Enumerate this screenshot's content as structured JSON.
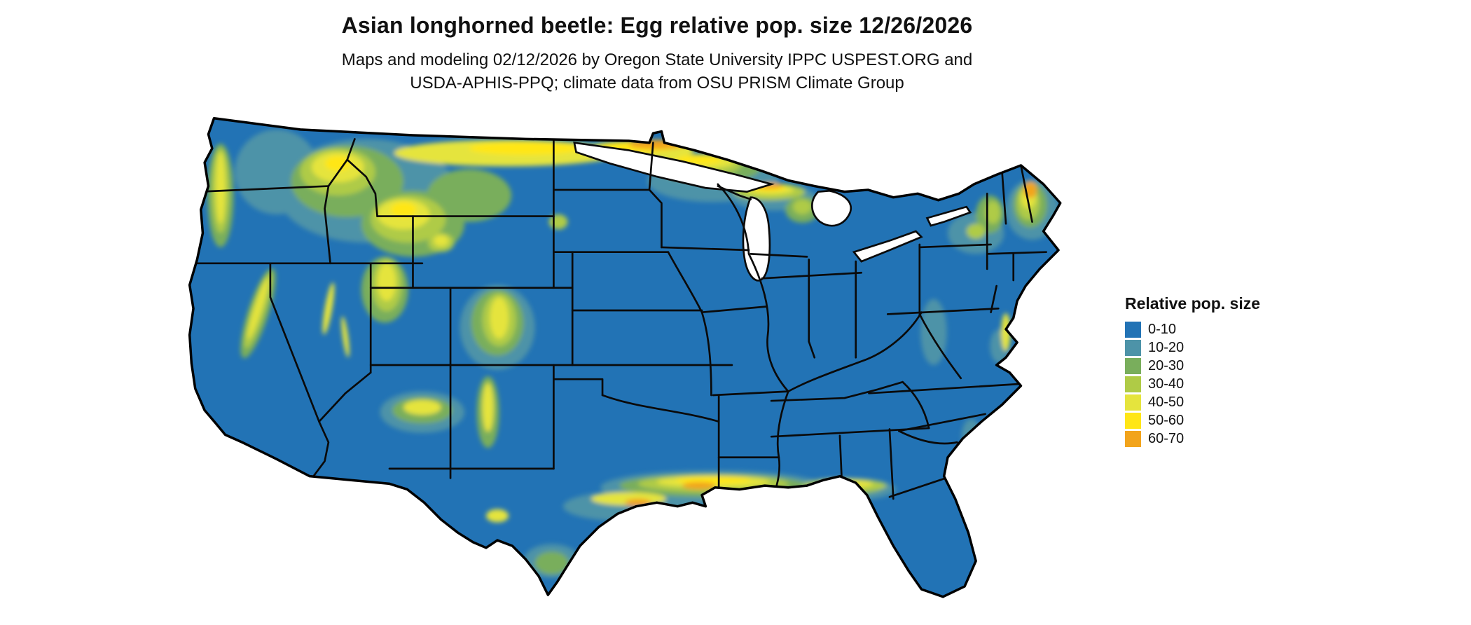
{
  "header": {
    "title": "Asian longhorned beetle: Egg relative pop. size 12/26/2026",
    "subtitle1": "Maps and modeling 02/12/2026 by Oregon State University IPPC USPEST.ORG and",
    "subtitle2": "USDA-APHIS-PPQ; climate data from OSU PRISM Climate Group"
  },
  "map": {
    "region": "Contiguous United States",
    "base_color": "#2273B5"
  },
  "legend": {
    "title": "Relative pop. size",
    "items": [
      {
        "label": "0-10",
        "color": "#2273B5"
      },
      {
        "label": "10-20",
        "color": "#4D93A8"
      },
      {
        "label": "20-30",
        "color": "#79AE5C"
      },
      {
        "label": "30-40",
        "color": "#AFCB46"
      },
      {
        "label": "40-50",
        "color": "#E5E43D"
      },
      {
        "label": "50-60",
        "color": "#FFE616"
      },
      {
        "label": "60-70",
        "color": "#F2A41C"
      }
    ]
  }
}
